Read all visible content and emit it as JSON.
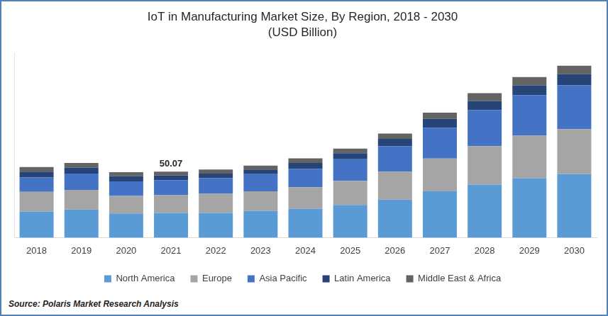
{
  "chart_data": {
    "type": "bar",
    "title": "IoT in Manufacturing Market Size, By Region, 2018 - 2030",
    "subtitle": "(USD Billion)",
    "source": "Source: Polaris Market Research Analysis",
    "categories": [
      "2018",
      "2019",
      "2020",
      "2021",
      "2022",
      "2023",
      "2024",
      "2025",
      "2026",
      "2027",
      "2028",
      "2029",
      "2030"
    ],
    "series": [
      {
        "name": "North America",
        "color": "#5b9bd5",
        "values": [
          19.8,
          21.3,
          18.3,
          18.8,
          18.8,
          20.3,
          21.8,
          24.8,
          28.8,
          35.2,
          40.2,
          45.1,
          48.1
        ]
      },
      {
        "name": "Europe",
        "color": "#a5a5a5",
        "values": [
          14.9,
          14.9,
          13.4,
          13.4,
          14.4,
          14.9,
          16.4,
          18.3,
          21.3,
          24.8,
          29.2,
          32.2,
          34.2
        ]
      },
      {
        "name": "Asia Pacific",
        "color": "#4472c4",
        "values": [
          10.9,
          12.4,
          10.9,
          11.4,
          11.9,
          12.9,
          13.9,
          16.4,
          19.3,
          23.3,
          27.3,
          30.7,
          33.2
        ]
      },
      {
        "name": "Latin America",
        "color": "#264478",
        "values": [
          4.5,
          4.5,
          4.0,
          3.5,
          3.5,
          3.5,
          4.5,
          4.5,
          5.5,
          6.9,
          6.9,
          7.4,
          8.4
        ]
      },
      {
        "name": "Middle East & Africa",
        "color": "#636363",
        "values": [
          3.5,
          3.5,
          3.0,
          2.97,
          3.0,
          3.0,
          3.5,
          3.5,
          4.0,
          4.5,
          5.9,
          6.4,
          6.4
        ]
      }
    ],
    "annotations": [
      {
        "x": "2021",
        "y": 50.07,
        "label": "50.07"
      }
    ],
    "ylim": [
      0,
      140
    ],
    "stacked": true,
    "grid": false,
    "legend": "bottom",
    "tick_labels": "x"
  }
}
